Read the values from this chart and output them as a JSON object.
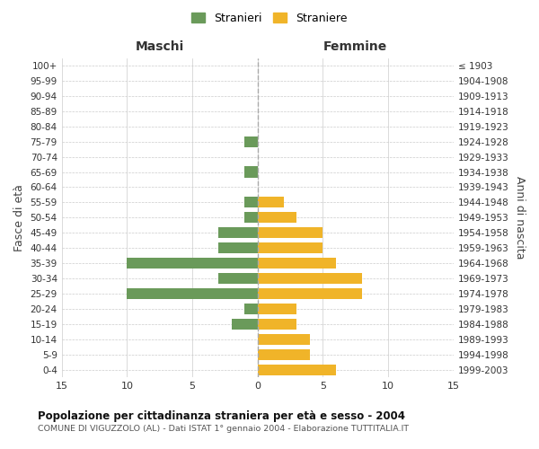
{
  "age_groups": [
    "100+",
    "95-99",
    "90-94",
    "85-89",
    "80-84",
    "75-79",
    "70-74",
    "65-69",
    "60-64",
    "55-59",
    "50-54",
    "45-49",
    "40-44",
    "35-39",
    "30-34",
    "25-29",
    "20-24",
    "15-19",
    "10-14",
    "5-9",
    "0-4"
  ],
  "birth_years": [
    "≤ 1903",
    "1904-1908",
    "1909-1913",
    "1914-1918",
    "1919-1923",
    "1924-1928",
    "1929-1933",
    "1934-1938",
    "1939-1943",
    "1944-1948",
    "1949-1953",
    "1954-1958",
    "1959-1963",
    "1964-1968",
    "1969-1973",
    "1974-1978",
    "1979-1983",
    "1984-1988",
    "1989-1993",
    "1994-1998",
    "1999-2003"
  ],
  "males": [
    0,
    0,
    0,
    0,
    0,
    1,
    0,
    1,
    0,
    1,
    1,
    3,
    3,
    10,
    3,
    10,
    1,
    2,
    0,
    0,
    0
  ],
  "females": [
    0,
    0,
    0,
    0,
    0,
    0,
    0,
    0,
    0,
    2,
    3,
    5,
    5,
    6,
    8,
    8,
    3,
    3,
    4,
    4,
    6
  ],
  "male_color": "#6a9a5a",
  "female_color": "#f0b429",
  "title": "Popolazione per cittadinanza straniera per età e sesso - 2004",
  "subtitle": "COMUNE DI VIGUZZOLO (AL) - Dati ISTAT 1° gennaio 2004 - Elaborazione TUTTITALIA.IT",
  "xlabel_left": "Maschi",
  "xlabel_right": "Femmine",
  "ylabel_left": "Fasce di età",
  "ylabel_right": "Anni di nascita",
  "legend_males": "Stranieri",
  "legend_females": "Straniere",
  "xlim": 15,
  "background_color": "#ffffff",
  "grid_color": "#cccccc"
}
